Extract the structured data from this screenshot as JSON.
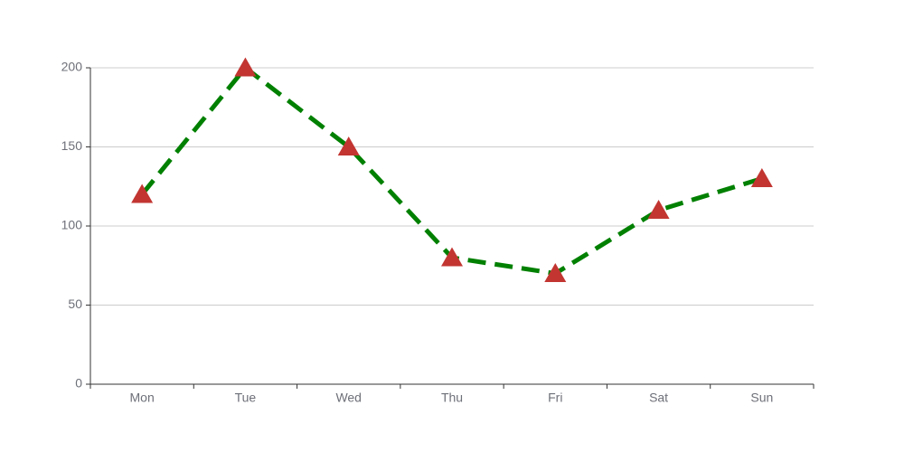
{
  "chart_data": {
    "type": "line",
    "title": "",
    "xlabel": "",
    "ylabel": "",
    "categories": [
      "Mon",
      "Tue",
      "Wed",
      "Thu",
      "Fri",
      "Sat",
      "Sun"
    ],
    "series": [
      {
        "values": [
          120,
          200,
          150,
          80,
          70,
          110,
          130
        ],
        "line_style": "dashed",
        "marker": "triangle",
        "line_color": "#008000",
        "marker_color": "#c23531"
      }
    ],
    "ylim": [
      0,
      200
    ],
    "yticks": [
      0,
      50,
      100,
      150,
      200
    ],
    "ytick_labels": [
      "0",
      "50",
      "100",
      "150",
      "200"
    ],
    "grid": "horizontal",
    "legend": "none"
  }
}
